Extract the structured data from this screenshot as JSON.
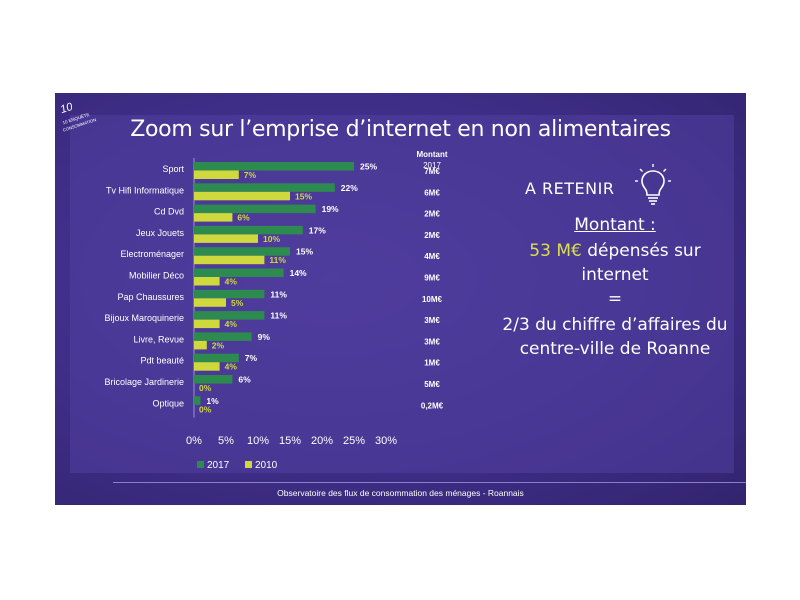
{
  "title": "Zoom sur l’emprise d’internet en non alimentaires",
  "logo": {
    "line1": "10 ENQUÊTE",
    "line2": "CONSOMMATION"
  },
  "retenir": {
    "heading": "A RETENIR",
    "montant_label": "Montant :",
    "amount": "53 M€",
    "line1_rest": " dépensés sur",
    "line2": "internet",
    "equals": "=",
    "line3": "2/3 du chiffre d’affaires du",
    "line4": "centre-ville de Roanne"
  },
  "footer": "Observatoire des flux de consommation des ménages - Roannais",
  "colors": {
    "series2017": "#2e8b4f",
    "series2010": "#cfd83c",
    "background": "#3f2e88",
    "accent": "#d9e04a"
  },
  "chart_data": {
    "type": "bar",
    "orientation": "horizontal",
    "categories": [
      "Sport",
      "Tv Hifi Informatique",
      "Cd Dvd",
      "Jeux Jouets",
      "Electroménager",
      "Mobilier Déco",
      "Pap Chaussures",
      "Bijoux Maroquinerie",
      "Livre, Revue",
      "Pdt beauté",
      "Bricolage Jardinerie",
      "Optique"
    ],
    "series": [
      {
        "name": "2017",
        "values": [
          25,
          22,
          19,
          17,
          15,
          14,
          11,
          11,
          9,
          7,
          6,
          1
        ],
        "labels": [
          "25%",
          "22%",
          "19%",
          "17%",
          "15%",
          "14%",
          "11%",
          "11%",
          "9%",
          "7%",
          "6%",
          "1%"
        ]
      },
      {
        "name": "2010",
        "values": [
          7,
          15,
          6,
          10,
          11,
          4,
          5,
          4,
          2,
          4,
          0,
          0
        ],
        "labels": [
          "7%",
          "15%",
          "6%",
          "10%",
          "11%",
          "4%",
          "5%",
          "4%",
          "2%",
          "4%",
          "0%",
          "0%"
        ]
      }
    ],
    "xlim": [
      0,
      30
    ],
    "xticks": [
      "0%",
      "5%",
      "10%",
      "15%",
      "20%",
      "25%",
      "30%"
    ],
    "legend_position": "bottom-left",
    "montant": {
      "header1": "Montant",
      "header2": "2017",
      "values": [
        "7M€",
        "6M€",
        "2M€",
        "2M€",
        "4M€",
        "9M€",
        "10M€",
        "3M€",
        "3M€",
        "1M€",
        "5M€",
        "0,2M€"
      ]
    }
  }
}
